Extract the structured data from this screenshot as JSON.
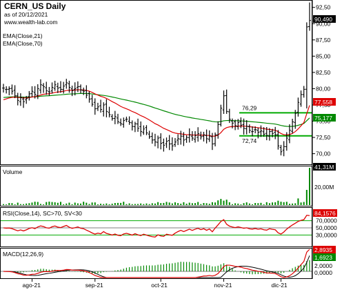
{
  "header": {
    "title": "CERN_US Daily",
    "date": "as of 20/12/2021",
    "site": "www.wealth-lab.com",
    "ema_label_1": "EMA(Close,21)",
    "ema_label_2": "EMA(Close,70)"
  },
  "colors": {
    "ema21": "#dd0000",
    "ema70": "#008800",
    "bars": "#000000",
    "volume": "#008800",
    "rsi": "#dd0000",
    "macd": "#dd0000",
    "signal": "#000000",
    "hist": "#008800",
    "level": "#00aa00"
  },
  "price_panel": {
    "y_ticks": [
      "92,50",
      "90,00",
      "87,50",
      "85,00",
      "82,50",
      "80,00",
      "77,50",
      "75,00",
      "72,50",
      "70,00"
    ],
    "last_label": "90,490",
    "ema21_label": "77,558",
    "ema70_label": "75,177",
    "level_high_label": "76,29",
    "level_low_label": "72,74"
  },
  "volume_panel": {
    "label": "Volume",
    "max_label": "41,31M",
    "y_ticks": [
      "20,00M"
    ]
  },
  "rsi_panel": {
    "label": "RSI(Close,14), SC>70, SV<30",
    "last_label": "84,1576",
    "y_ticks": [
      "70,0000",
      "50,0000",
      "30,0000"
    ]
  },
  "macd_panel": {
    "label": "MACD(12,26,9)",
    "macd_label": "2,8935",
    "signal_label": "1,6923",
    "y_ticks": [
      "2,0000",
      "0,0000"
    ]
  },
  "x_axis": {
    "labels": [
      "ago-21",
      "sep-21",
      "oct-21",
      "nov-21",
      "dic-21"
    ]
  },
  "chart_data": {
    "type": "ohlc",
    "ylim": [
      69,
      93
    ],
    "closes": [
      80.1,
      79.9,
      80.0,
      79.6,
      78.9,
      78.2,
      78.6,
      78.0,
      78.5,
      79.2,
      79.6,
      79.1,
      80.0,
      80.6,
      80.3,
      79.7,
      79.5,
      80.2,
      80.6,
      80.1,
      79.9,
      80.4,
      80.9,
      80.2,
      79.7,
      80.0,
      80.3,
      79.8,
      79.6,
      79.0,
      78.4,
      77.6,
      76.9,
      77.2,
      76.8,
      77.5,
      76.5,
      76.0,
      75.4,
      75.7,
      74.9,
      74.6,
      75.1,
      75.3,
      74.8,
      74.2,
      74.6,
      73.9,
      73.4,
      73.8,
      73.2,
      72.6,
      72.1,
      71.8,
      72.4,
      71.6,
      71.3,
      71.9,
      71.5,
      71.2,
      71.8,
      72.3,
      72.7,
      72.1,
      72.5,
      72.9,
      72.4,
      72.8,
      73.1,
      72.6,
      72.9,
      72.3,
      72.7,
      71.5,
      72.9,
      74.5,
      77.0,
      78.9,
      76.5,
      75.3,
      74.7,
      74.3,
      74.8,
      74.4,
      73.9,
      74.2,
      73.6,
      73.4,
      73.7,
      73.3,
      73.5,
      73.0,
      72.8,
      73.4,
      73.1,
      72.9,
      71.2,
      70.3,
      71.1,
      72.4,
      73.6,
      74.9,
      76.2,
      77.9,
      79.1,
      79.9,
      89.5,
      90.49
    ],
    "ema21": {
      "start": 78.1,
      "end": 77.558
    },
    "ema70": {
      "start": 78.6,
      "end": 75.177
    },
    "level_high": 76.29,
    "level_low": 72.74,
    "volume_last": "41,31M",
    "rsi_last": 84.1576,
    "rsi_levels": [
      70,
      50,
      30
    ],
    "macd_last": 2.8935,
    "signal_last": 1.6923
  }
}
